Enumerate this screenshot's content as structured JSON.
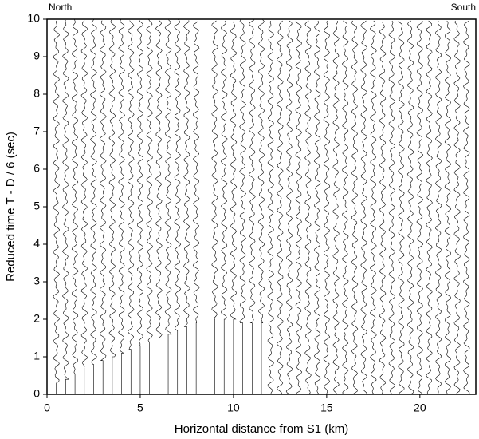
{
  "chart_data": {
    "type": "record-section",
    "xlabel": "Horizontal distance from S1 (km)",
    "ylabel": "Reduced time T - D / 6 (sec)",
    "annotations": {
      "left": "North",
      "right": "South"
    },
    "xlim": [
      0,
      23
    ],
    "ylim": [
      0,
      10
    ],
    "xticks": [
      0,
      5,
      10,
      15,
      20
    ],
    "yticks": [
      0,
      1,
      2,
      3,
      4,
      5,
      6,
      7,
      8,
      9,
      10
    ],
    "color": "#000000",
    "traces": {
      "x": [
        0.5,
        1.0,
        1.5,
        2.0,
        2.5,
        3.0,
        3.5,
        4.0,
        4.5,
        5.0,
        5.5,
        6.0,
        6.5,
        7.0,
        7.5,
        8.0,
        9.0,
        9.5,
        10.0,
        10.5,
        11.0,
        11.5,
        12.0,
        12.5,
        13.0,
        13.5,
        14.0,
        14.5,
        15.0,
        15.5,
        16.0,
        16.5,
        17.0,
        17.5,
        18.0,
        18.5,
        19.0,
        19.5,
        20.0,
        20.5,
        21.0,
        21.5,
        22.0,
        22.5
      ],
      "onset": [
        0.3,
        0.4,
        0.55,
        0.7,
        0.8,
        0.9,
        1.0,
        1.1,
        1.2,
        1.3,
        1.4,
        1.5,
        1.6,
        1.7,
        1.8,
        1.9,
        2,
        2,
        2,
        1.9,
        1.9,
        1.9,
        0,
        0,
        0,
        0,
        0,
        0,
        0,
        0,
        0,
        0,
        0,
        0,
        0,
        0,
        0,
        0,
        0,
        0,
        0,
        0,
        0,
        0
      ]
    }
  }
}
